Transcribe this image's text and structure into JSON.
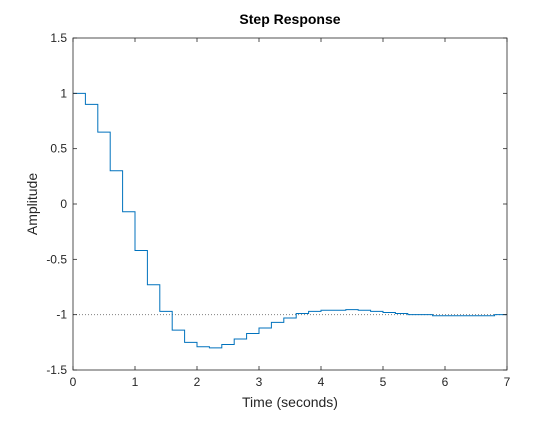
{
  "chart_data": {
    "type": "line",
    "style": "step",
    "title": "Step Response",
    "xlabel": "Time (seconds)",
    "ylabel": "Amplitude",
    "xlim": [
      0,
      7
    ],
    "ylim": [
      -1.5,
      1.5
    ],
    "xticks": [
      0,
      1,
      2,
      3,
      4,
      5,
      6,
      7
    ],
    "xtick_labels": [
      "0",
      "1",
      "2",
      "3",
      "4",
      "5",
      "6",
      "7"
    ],
    "yticks": [
      1.5,
      1,
      0.5,
      0,
      -0.5,
      -1,
      -1.5
    ],
    "ytick_labels": [
      "1.5",
      "1",
      "0.5",
      "0",
      "-0.5",
      "-1",
      "-1.5"
    ],
    "grid": false,
    "box": true,
    "sample_time": 0.2,
    "series": [
      {
        "color": "#0072BD",
        "x": [
          0,
          0.2,
          0.4,
          0.6,
          0.8,
          1.0,
          1.2,
          1.4,
          1.6,
          1.8,
          2.0,
          2.2,
          2.4,
          2.6,
          2.8,
          3.0,
          3.2,
          3.4,
          3.6,
          3.8,
          4.0,
          4.2,
          4.4,
          4.6,
          4.8,
          5.0,
          5.2,
          5.4,
          5.6,
          5.8,
          6.0,
          6.2,
          6.4,
          6.6,
          6.8,
          7.0
        ],
        "values": [
          1.0,
          0.9,
          0.65,
          0.3,
          -0.07,
          -0.42,
          -0.73,
          -0.97,
          -1.14,
          -1.25,
          -1.29,
          -1.3,
          -1.27,
          -1.22,
          -1.17,
          -1.12,
          -1.07,
          -1.03,
          -0.99,
          -0.97,
          -0.96,
          -0.96,
          -0.955,
          -0.96,
          -0.97,
          -0.98,
          -0.99,
          -1.0,
          -1.0,
          -1.01,
          -1.01,
          -1.01,
          -1.01,
          -1.01,
          -1.0,
          -1.0
        ]
      }
    ],
    "reference_line": {
      "y": -1,
      "style": "dotted",
      "color": "#808080"
    },
    "axes_color": "#262626",
    "background": "#ffffff"
  }
}
